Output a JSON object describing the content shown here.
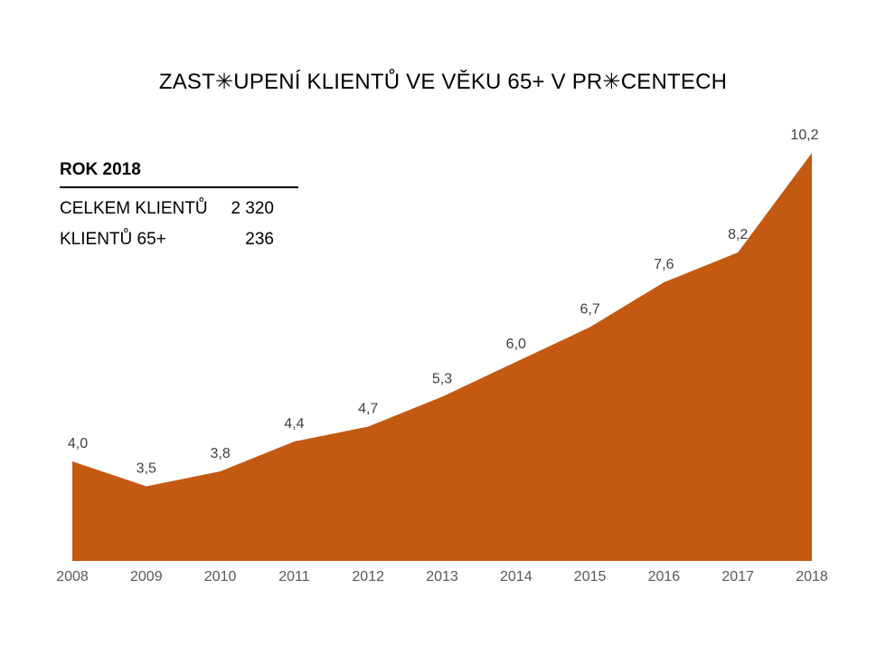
{
  "chart": {
    "title": "ZAST✳UPENÍ KLIENTŮ VE VĚKU 65+ V PR✳CENTECH"
  },
  "info_table": {
    "header": "ROK 2018",
    "rows": [
      {
        "label": "CELKEM KLIENTŮ",
        "value": "2 320"
      },
      {
        "label": "KLIENTŮ 65+",
        "value": "236"
      }
    ]
  },
  "chart_data": {
    "type": "area",
    "title": "ZAST✳UPENÍ KLIENTŮ VE VĚKU 65+ V PR✳CENTECH",
    "categories": [
      "2008",
      "2009",
      "2010",
      "2011",
      "2012",
      "2013",
      "2014",
      "2015",
      "2016",
      "2017",
      "2018"
    ],
    "values": [
      4.0,
      3.5,
      3.8,
      4.4,
      4.7,
      5.3,
      6.0,
      6.7,
      7.6,
      8.2,
      10.2
    ],
    "value_labels": [
      "4,0",
      "3,5",
      "3,8",
      "4,4",
      "4,7",
      "5,3",
      "6,0",
      "6,7",
      "7,6",
      "8,2",
      "10,2"
    ],
    "xlabel": "",
    "ylabel": "",
    "ylim": [
      2,
      11
    ],
    "grid": false,
    "legend": false,
    "data_label_position": "above",
    "colors": {
      "series_fill": "#C45911",
      "data_label": "#404040",
      "axis_label": "#595959",
      "background": "#ffffff"
    }
  }
}
